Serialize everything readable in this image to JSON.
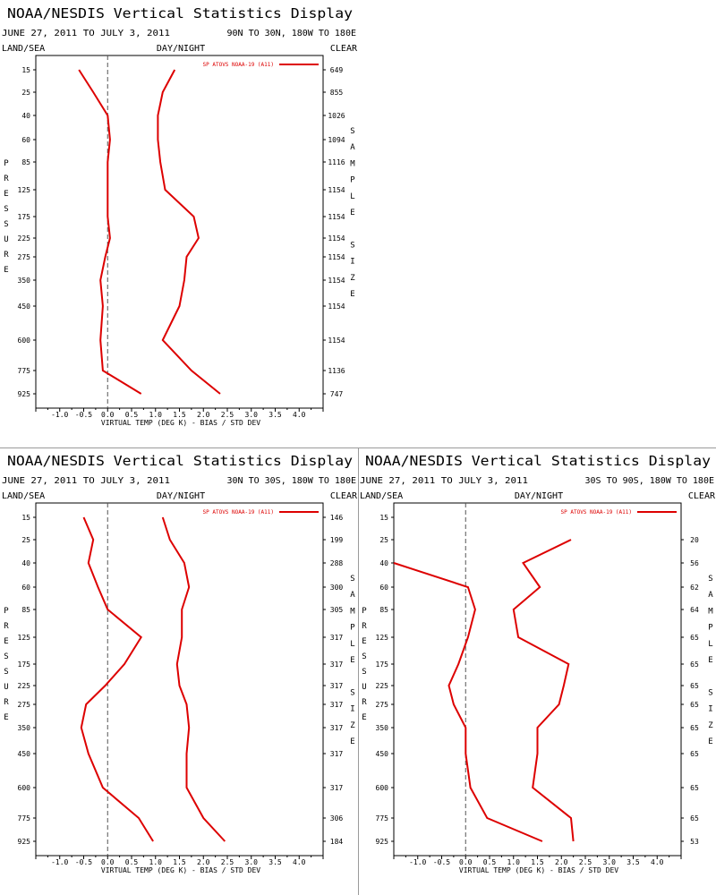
{
  "header": {
    "title": "NOAA/NESDIS Vertical Statistics Display",
    "date_range": "JUNE 27, 2011 TO JULY 3, 2011",
    "land_sea": "LAND/SEA",
    "day_night": "DAY/NIGHT",
    "clear": "CLEAR"
  },
  "labels": {
    "pressure_letters": [
      "P",
      "R",
      "E",
      "S",
      "S",
      "U",
      "R",
      "E"
    ],
    "sample_size_letters": [
      "S",
      "A",
      "M",
      "P",
      "L",
      "E",
      "",
      "S",
      "I",
      "Z",
      "E"
    ],
    "xlabel": "VIRTUAL TEMP (DEG K) - BIAS / STD DEV",
    "legend": "SP ATOVS NOAA-19 (A11)"
  },
  "colors": {
    "series": "#dd0000",
    "zero_line": "#555555",
    "axis": "#000000",
    "divider": "#9a9a9a"
  },
  "chart_data": [
    {
      "type": "line",
      "region": "90N TO 30N, 180W TO 180E",
      "pressure_levels": [
        15,
        25,
        40,
        60,
        85,
        125,
        175,
        225,
        275,
        350,
        450,
        600,
        775,
        925
      ],
      "xlim": [
        -1.5,
        4.5
      ],
      "xticks": [
        "-1.0",
        "-0.5",
        "0.0",
        "0.5",
        "1.0",
        "1.5",
        "2.0",
        "2.5",
        "3.0",
        "3.5",
        "4.0"
      ],
      "sample_size": [
        "649",
        "855",
        "1026",
        "1094",
        "1116",
        "1154",
        "1154",
        "1154",
        "1154",
        "1154",
        "1154",
        "1154",
        "1136",
        "747"
      ],
      "series": [
        {
          "name": "bias",
          "values": [
            -0.6,
            -0.3,
            0.0,
            0.05,
            0.0,
            0.0,
            0.0,
            0.05,
            -0.05,
            -0.15,
            -0.1,
            -0.15,
            -0.1,
            0.7
          ]
        },
        {
          "name": "std_dev",
          "values": [
            1.4,
            1.15,
            1.05,
            1.05,
            1.1,
            1.2,
            1.8,
            1.9,
            1.65,
            1.6,
            1.5,
            1.15,
            1.75,
            2.35
          ]
        }
      ]
    },
    {
      "type": "line",
      "region": "30N TO 30S, 180W TO 180E",
      "pressure_levels": [
        15,
        25,
        40,
        60,
        85,
        125,
        175,
        225,
        275,
        350,
        450,
        600,
        775,
        925
      ],
      "xlim": [
        -1.5,
        4.5
      ],
      "xticks": [
        "-1.0",
        "-0.5",
        "0.0",
        "0.5",
        "1.0",
        "1.5",
        "2.0",
        "2.5",
        "3.0",
        "3.5",
        "4.0"
      ],
      "sample_size": [
        "146",
        "199",
        "288",
        "300",
        "305",
        "317",
        "317",
        "317",
        "317",
        "317",
        "317",
        "317",
        "306",
        "184"
      ],
      "series": [
        {
          "name": "bias",
          "values": [
            -0.5,
            -0.3,
            -0.4,
            -0.2,
            0.0,
            0.7,
            0.35,
            -0.05,
            -0.45,
            -0.55,
            -0.4,
            -0.1,
            0.65,
            0.95
          ]
        },
        {
          "name": "std_dev",
          "values": [
            1.15,
            1.3,
            1.6,
            1.7,
            1.55,
            1.55,
            1.45,
            1.5,
            1.65,
            1.7,
            1.65,
            1.65,
            2.0,
            2.45
          ]
        }
      ]
    },
    {
      "type": "line",
      "region": "30S TO 90S, 180W TO 180E",
      "pressure_levels": [
        15,
        25,
        40,
        60,
        85,
        125,
        175,
        225,
        275,
        350,
        450,
        600,
        775,
        925
      ],
      "xlim": [
        -1.5,
        4.5
      ],
      "xticks": [
        "-1.0",
        "-0.5",
        "0.0",
        "0.5",
        "1.0",
        "1.5",
        "2.0",
        "2.5",
        "3.0",
        "3.5",
        "4.0"
      ],
      "sample_size": [
        "",
        "20",
        "56",
        "62",
        "64",
        "65",
        "65",
        "65",
        "65",
        "65",
        "65",
        "65",
        "65",
        "53"
      ],
      "series": [
        {
          "name": "bias",
          "values": [
            null,
            null,
            -1.5,
            0.05,
            0.2,
            0.05,
            -0.15,
            -0.35,
            -0.25,
            0.0,
            0.0,
            0.1,
            0.45,
            1.6
          ]
        },
        {
          "name": "std_dev",
          "values": [
            null,
            2.2,
            1.2,
            1.55,
            1.0,
            1.1,
            2.15,
            2.05,
            1.95,
            1.5,
            1.5,
            1.4,
            2.2,
            2.25
          ]
        }
      ]
    }
  ]
}
